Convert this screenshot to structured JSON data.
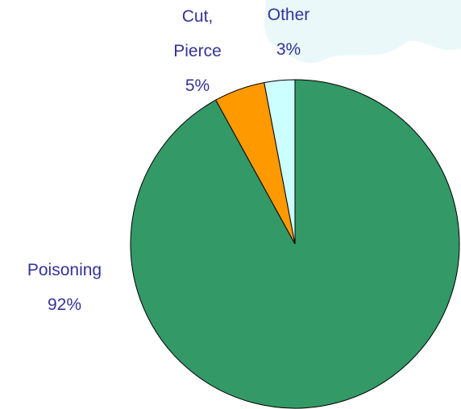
{
  "chart_data": {
    "type": "pie",
    "categories": [
      "Poisoning",
      "Cut, Pierce",
      "Other"
    ],
    "values": [
      92,
      5,
      3
    ],
    "value_labels": [
      "92%",
      "5%",
      "3%"
    ],
    "colors": [
      "#339966",
      "#ff9900",
      "#ccffff"
    ]
  }
}
